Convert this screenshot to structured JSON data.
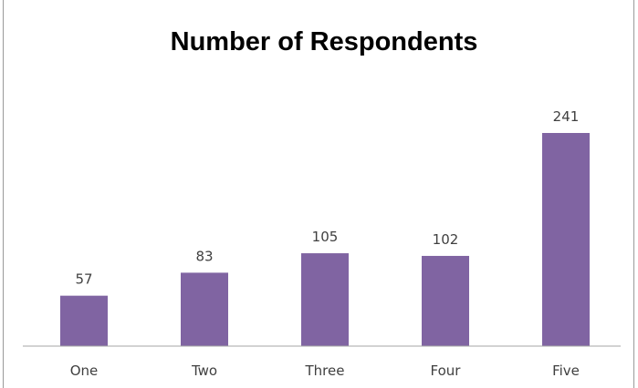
{
  "chart_data": {
    "type": "bar",
    "title": "Number of Respondents",
    "categories": [
      "One",
      "Two",
      "Three",
      "Four",
      "Five"
    ],
    "values": [
      57,
      83,
      105,
      102,
      241
    ],
    "data_labels": [
      "57",
      "83",
      "105",
      "102",
      "241"
    ],
    "xlabel": "",
    "ylabel": "",
    "ylim": [
      0,
      241
    ],
    "grid": false,
    "legend": "none",
    "colors": {
      "bar": "#8064a2",
      "axis": "#a6a6a6",
      "text": "#404040"
    }
  }
}
